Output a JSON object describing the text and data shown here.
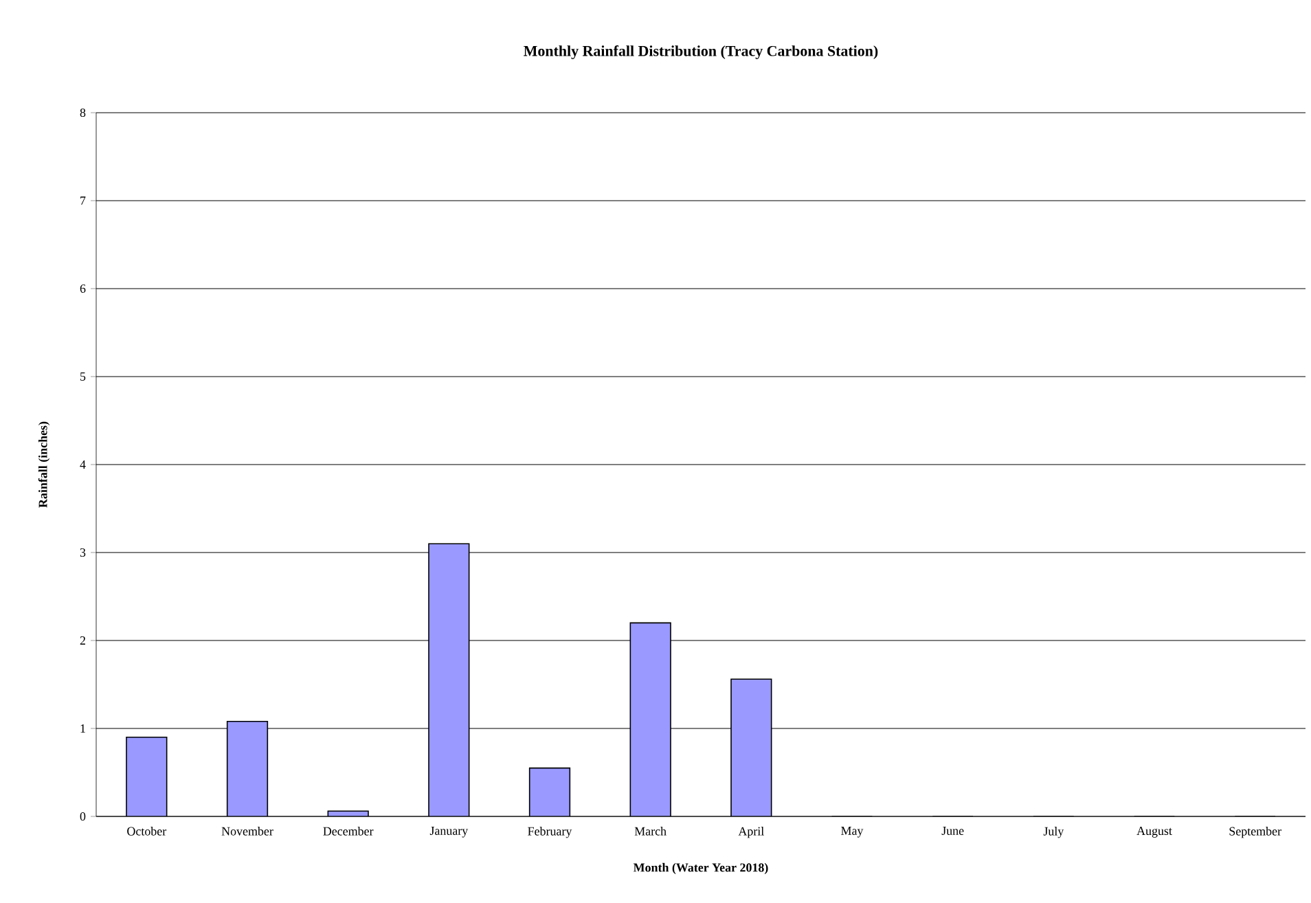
{
  "chart_data": {
    "type": "bar",
    "title": "Monthly Rainfall Distribution  (Tracy Carbona Station)",
    "xlabel": "Month (Water Year 2018)",
    "ylabel": "Rainfall (inches)",
    "categories": [
      "October",
      "November",
      "December",
      "January",
      "February",
      "March",
      "April",
      "May",
      "June",
      "July",
      "August",
      "September"
    ],
    "values": [
      0.9,
      1.08,
      0.06,
      3.1,
      0.55,
      2.2,
      1.56,
      0,
      0,
      0,
      0,
      0
    ],
    "color": "#9999ff",
    "ylim": [
      0,
      8
    ],
    "yticks": [
      0,
      1,
      2,
      3,
      4,
      5,
      6,
      7,
      8
    ],
    "grid": "y"
  }
}
